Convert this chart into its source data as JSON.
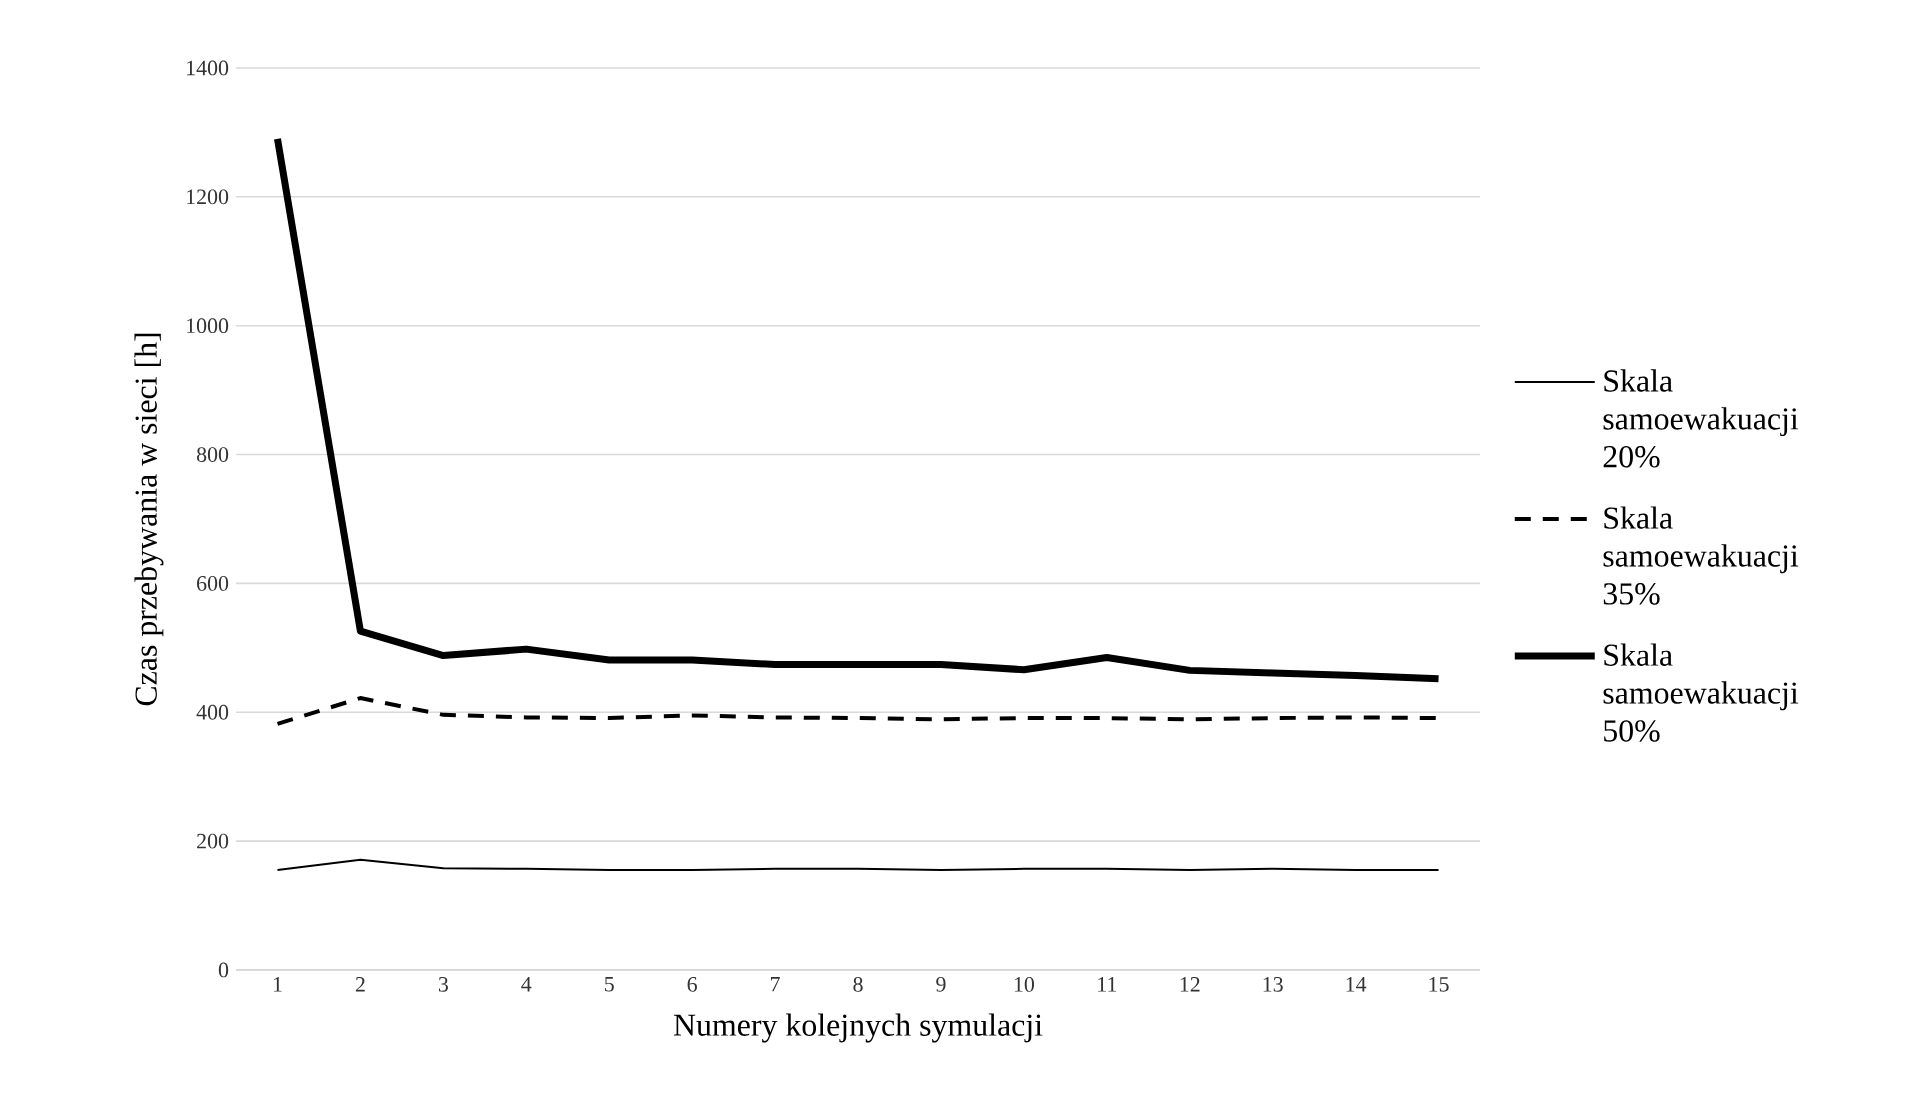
{
  "chart_data": {
    "type": "line",
    "xlabel": "Numery kolejnych symulacji",
    "ylabel": "Czas przebywania w sieci [h]",
    "categories": [
      "1",
      "2",
      "3",
      "4",
      "5",
      "6",
      "7",
      "8",
      "9",
      "10",
      "11",
      "12",
      "13",
      "14",
      "15"
    ],
    "series": [
      {
        "name": "Skala samoewakuacji 20%",
        "color": "#000000",
        "line_style": "solid",
        "values": [
          155,
          171,
          158,
          157,
          155,
          155,
          157,
          157,
          155,
          157,
          157,
          155,
          157,
          155,
          155
        ]
      },
      {
        "name": "Skala samoewakuacji 35%",
        "color": "#000000",
        "line_style": "dashed",
        "values": [
          382,
          422,
          396,
          392,
          391,
          395,
          392,
          391,
          389,
          391,
          391,
          389,
          391,
          392,
          391
        ]
      },
      {
        "name": "Skala samoewakuacji 50%",
        "color": "#000000",
        "line_style": "solid",
        "values": [
          1290,
          526,
          488,
          498,
          481,
          481,
          474,
          474,
          474,
          466,
          485,
          465,
          461,
          457,
          452
        ]
      }
    ],
    "ylim": [
      0,
      1400
    ],
    "yticks": [
      0,
      200,
      400,
      600,
      800,
      1000,
      1200,
      1400
    ],
    "grid": "y",
    "legend": "right",
    "marker": "none"
  }
}
